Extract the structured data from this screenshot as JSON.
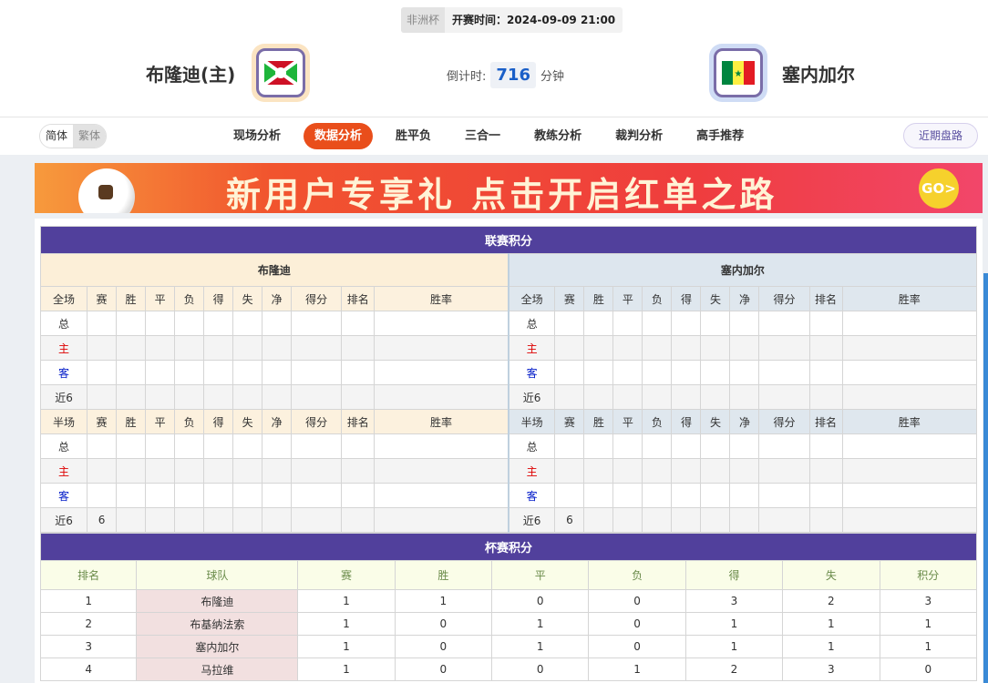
{
  "match": {
    "league": "非洲杯",
    "time": "开赛时间：2024-09-09 21:00",
    "home": "布隆迪(主)",
    "away": "塞内加尔",
    "countdown_label": "倒计时:",
    "countdown": "716",
    "countdown_unit": "分钟"
  },
  "nav": {
    "simplified": "简体",
    "traditional": "繁体",
    "tabs": [
      "现场分析",
      "数据分析",
      "胜平负",
      "三合一",
      "教练分析",
      "裁判分析",
      "高手推荐"
    ],
    "active_tab": "数据分析",
    "recent": "近期盘路"
  },
  "banner": {
    "text": "新用户专享礼  点击开启红单之路",
    "go": "GO>"
  },
  "league_table": {
    "title": "联赛积分",
    "home_team": "布隆迪",
    "away_team": "塞内加尔",
    "full_header": [
      "全场",
      "赛",
      "胜",
      "平",
      "负",
      "得",
      "失",
      "净",
      "得分",
      "排名",
      "胜率"
    ],
    "half_header": [
      "半场",
      "赛",
      "胜",
      "平",
      "负",
      "得",
      "失",
      "净",
      "得分",
      "排名",
      "胜率"
    ],
    "rows": [
      {
        "label": "总",
        "vals": [
          "",
          "",
          "",
          "",
          "",
          "",
          "",
          "",
          "",
          ""
        ]
      },
      {
        "label": "主",
        "vals": [
          "",
          "",
          "",
          "",
          "",
          "",
          "",
          "",
          "",
          ""
        ]
      },
      {
        "label": "客",
        "vals": [
          "",
          "",
          "",
          "",
          "",
          "",
          "",
          "",
          "",
          ""
        ]
      },
      {
        "label": "近6",
        "vals": [
          "",
          "",
          "",
          "",
          "",
          "",
          "",
          "",
          "",
          ""
        ]
      }
    ],
    "half_rows": [
      {
        "label": "总",
        "vals": [
          "",
          "",
          "",
          "",
          "",
          "",
          "",
          "",
          "",
          ""
        ]
      },
      {
        "label": "主",
        "vals": [
          "",
          "",
          "",
          "",
          "",
          "",
          "",
          "",
          "",
          ""
        ]
      },
      {
        "label": "客",
        "vals": [
          "",
          "",
          "",
          "",
          "",
          "",
          "",
          "",
          "",
          ""
        ]
      },
      {
        "label": "近6",
        "vals": [
          "6",
          "",
          "",
          "",
          "",
          "",
          "",
          "",
          "",
          ""
        ]
      }
    ]
  },
  "cup_table": {
    "title": "杯赛积分",
    "header": [
      "排名",
      "球队",
      "赛",
      "胜",
      "平",
      "负",
      "得",
      "失",
      "积分"
    ],
    "rows": [
      [
        "1",
        "布隆迪",
        "1",
        "1",
        "0",
        "0",
        "3",
        "2",
        "3"
      ],
      [
        "2",
        "布基纳法索",
        "1",
        "0",
        "1",
        "0",
        "1",
        "1",
        "1"
      ],
      [
        "3",
        "塞内加尔",
        "1",
        "0",
        "1",
        "0",
        "1",
        "1",
        "1"
      ],
      [
        "4",
        "马拉维",
        "1",
        "0",
        "0",
        "1",
        "2",
        "3",
        "0"
      ]
    ]
  },
  "colors": {
    "accent": "#e94e1b",
    "table_title": "#51409c"
  }
}
